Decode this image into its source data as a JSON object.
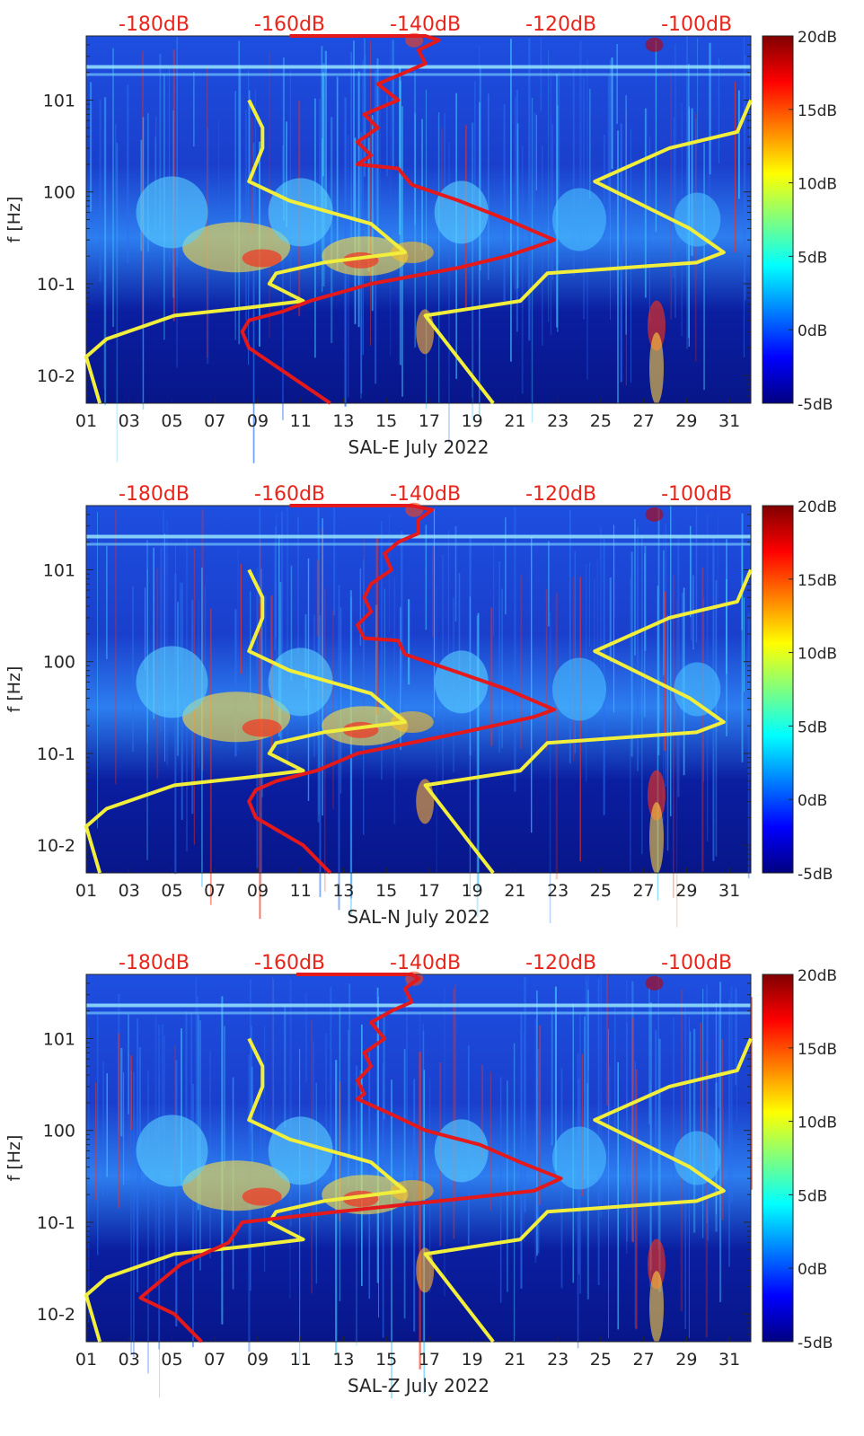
{
  "colors": {
    "top_axis_labels": "#e8251b",
    "noise_model_lines": "#f2ee3c",
    "psd_curve": "#e3191b",
    "colormap_low": "#000080",
    "colormap_high": "#800000"
  },
  "chart_data": [
    {
      "type": "heatmap",
      "title": "",
      "xlabel": "SAL-E July 2022",
      "ylabel": "f [Hz]",
      "x_tick_labels": [
        "01",
        "03",
        "05",
        "07",
        "09",
        "11",
        "13",
        "15",
        "17",
        "19",
        "21",
        "23",
        "25",
        "27",
        "29",
        "31"
      ],
      "x_range_days": [
        1,
        32
      ],
      "y_scale": "log",
      "y_range_hz": [
        0.005,
        50
      ],
      "y_tick_labels": [
        "10-2",
        "10-1",
        "100",
        "101"
      ],
      "colorbar": {
        "range_db": [
          -5,
          20
        ],
        "tick_labels": [
          "20dB",
          "15dB",
          "10dB",
          "5dB",
          "0dB",
          "-5dB"
        ]
      },
      "top_axis": {
        "tick_labels": [
          "-180dB",
          "-160dB",
          "-140dB",
          "-120dB",
          "-100dB"
        ],
        "range_db": [
          -190,
          -92
        ]
      },
      "series": [
        {
          "kind": "noise-model",
          "points_db_hz": [
            [
              -166,
              10
            ],
            [
              -164,
              5
            ],
            [
              -164,
              3
            ],
            [
              -166,
              1.3
            ],
            [
              -160,
              0.8
            ],
            [
              -148,
              0.45
            ],
            [
              -143,
              0.22
            ],
            [
              -155,
              0.17
            ],
            [
              -162,
              0.13
            ],
            [
              -163,
              0.1
            ],
            [
              -158,
              0.065
            ],
            [
              -166,
              0.055
            ],
            [
              -177,
              0.045
            ],
            [
              -187,
              0.025
            ],
            [
              -190,
              0.016
            ],
            [
              -188,
              0.005
            ]
          ]
        },
        {
          "kind": "noise-model",
          "points_db_hz": [
            [
              -92,
              10
            ],
            [
              -94,
              4.5
            ],
            [
              -104,
              3
            ],
            [
              -115,
              1.3
            ],
            [
              -101,
              0.4
            ],
            [
              -96,
              0.22
            ],
            [
              -100,
              0.17
            ],
            [
              -122,
              0.13
            ],
            [
              -126,
              0.065
            ],
            [
              -140,
              0.045
            ],
            [
              -130,
              0.005
            ]
          ]
        },
        {
          "kind": "psd",
          "points_db_hz": [
            [
              -160,
              50
            ],
            [
              -140,
              50
            ],
            [
              -138,
              45
            ],
            [
              -141,
              35
            ],
            [
              -140,
              25
            ],
            [
              -143,
              20
            ],
            [
              -147,
              15
            ],
            [
              -144,
              10
            ],
            [
              -149,
              7
            ],
            [
              -147,
              5
            ],
            [
              -150,
              3.5
            ],
            [
              -148,
              2.5
            ],
            [
              -150,
              2
            ],
            [
              -144,
              1.8
            ],
            [
              -142,
              1.2
            ],
            [
              -135,
              0.8
            ],
            [
              -128,
              0.5
            ],
            [
              -121,
              0.3
            ],
            [
              -124,
              0.25
            ],
            [
              -128,
              0.2
            ],
            [
              -135,
              0.15
            ],
            [
              -148,
              0.1
            ],
            [
              -157,
              0.065
            ],
            [
              -161,
              0.05
            ],
            [
              -166,
              0.04
            ],
            [
              -167,
              0.03
            ],
            [
              -166,
              0.02
            ],
            [
              -160,
              0.01
            ],
            [
              -154,
              0.005
            ]
          ]
        }
      ]
    },
    {
      "type": "heatmap",
      "title": "",
      "xlabel": "SAL-N July 2022",
      "ylabel": "f [Hz]",
      "x_tick_labels": [
        "01",
        "03",
        "05",
        "07",
        "09",
        "11",
        "13",
        "15",
        "17",
        "19",
        "21",
        "23",
        "25",
        "27",
        "29",
        "31"
      ],
      "x_range_days": [
        1,
        32
      ],
      "y_scale": "log",
      "y_range_hz": [
        0.005,
        50
      ],
      "y_tick_labels": [
        "10-2",
        "10-1",
        "100",
        "101"
      ],
      "colorbar": {
        "range_db": [
          -5,
          20
        ],
        "tick_labels": [
          "20dB",
          "15dB",
          "10dB",
          "5dB",
          "0dB",
          "-5dB"
        ]
      },
      "top_axis": {
        "tick_labels": [
          "-180dB",
          "-160dB",
          "-140dB",
          "-120dB",
          "-100dB"
        ],
        "range_db": [
          -190,
          -92
        ]
      },
      "series": [
        {
          "kind": "noise-model",
          "points_db_hz": [
            [
              -166,
              10
            ],
            [
              -164,
              5
            ],
            [
              -164,
              3
            ],
            [
              -166,
              1.3
            ],
            [
              -160,
              0.8
            ],
            [
              -148,
              0.45
            ],
            [
              -143,
              0.22
            ],
            [
              -155,
              0.17
            ],
            [
              -162,
              0.13
            ],
            [
              -163,
              0.1
            ],
            [
              -158,
              0.065
            ],
            [
              -166,
              0.055
            ],
            [
              -177,
              0.045
            ],
            [
              -187,
              0.025
            ],
            [
              -190,
              0.016
            ],
            [
              -188,
              0.005
            ]
          ]
        },
        {
          "kind": "noise-model",
          "points_db_hz": [
            [
              -92,
              10
            ],
            [
              -94,
              4.5
            ],
            [
              -104,
              3
            ],
            [
              -115,
              1.3
            ],
            [
              -101,
              0.4
            ],
            [
              -96,
              0.22
            ],
            [
              -100,
              0.17
            ],
            [
              -122,
              0.13
            ],
            [
              -126,
              0.065
            ],
            [
              -140,
              0.045
            ],
            [
              -130,
              0.005
            ]
          ]
        },
        {
          "kind": "psd",
          "points_db_hz": [
            [
              -160,
              50
            ],
            [
              -142,
              50
            ],
            [
              -139,
              45
            ],
            [
              -141,
              35
            ],
            [
              -141,
              25
            ],
            [
              -144,
              20
            ],
            [
              -146,
              15
            ],
            [
              -145,
              10
            ],
            [
              -148,
              7
            ],
            [
              -149,
              5
            ],
            [
              -148,
              3.5
            ],
            [
              -150,
              2.5
            ],
            [
              -149,
              1.8
            ],
            [
              -144,
              1.7
            ],
            [
              -143,
              1.2
            ],
            [
              -136,
              0.8
            ],
            [
              -128,
              0.5
            ],
            [
              -121,
              0.3
            ],
            [
              -124,
              0.25
            ],
            [
              -130,
              0.2
            ],
            [
              -138,
              0.15
            ],
            [
              -150,
              0.1
            ],
            [
              -156,
              0.065
            ],
            [
              -162,
              0.05
            ],
            [
              -165,
              0.04
            ],
            [
              -166,
              0.03
            ],
            [
              -165,
              0.02
            ],
            [
              -158,
              0.01
            ],
            [
              -154,
              0.005
            ]
          ]
        }
      ]
    },
    {
      "type": "heatmap",
      "title": "",
      "xlabel": "SAL-Z July 2022",
      "ylabel": "f [Hz]",
      "x_tick_labels": [
        "01",
        "03",
        "05",
        "07",
        "09",
        "11",
        "13",
        "15",
        "17",
        "19",
        "21",
        "23",
        "25",
        "27",
        "29",
        "31"
      ],
      "x_range_days": [
        1,
        32
      ],
      "y_scale": "log",
      "y_range_hz": [
        0.005,
        50
      ],
      "y_tick_labels": [
        "10-2",
        "10-1",
        "100",
        "101"
      ],
      "colorbar": {
        "range_db": [
          -5,
          20
        ],
        "tick_labels": [
          "20dB",
          "15dB",
          "10dB",
          "5dB",
          "0dB",
          "-5dB"
        ]
      },
      "top_axis": {
        "tick_labels": [
          "-180dB",
          "-160dB",
          "-140dB",
          "-120dB",
          "-100dB"
        ],
        "range_db": [
          -190,
          -92
        ]
      },
      "series": [
        {
          "kind": "noise-model",
          "points_db_hz": [
            [
              -166,
              10
            ],
            [
              -164,
              5
            ],
            [
              -164,
              3
            ],
            [
              -166,
              1.3
            ],
            [
              -160,
              0.8
            ],
            [
              -148,
              0.45
            ],
            [
              -143,
              0.22
            ],
            [
              -155,
              0.17
            ],
            [
              -162,
              0.13
            ],
            [
              -163,
              0.1
            ],
            [
              -158,
              0.065
            ],
            [
              -166,
              0.055
            ],
            [
              -177,
              0.045
            ],
            [
              -187,
              0.025
            ],
            [
              -190,
              0.016
            ],
            [
              -188,
              0.005
            ]
          ]
        },
        {
          "kind": "noise-model",
          "points_db_hz": [
            [
              -92,
              10
            ],
            [
              -94,
              4.5
            ],
            [
              -104,
              3
            ],
            [
              -115,
              1.3
            ],
            [
              -101,
              0.4
            ],
            [
              -96,
              0.22
            ],
            [
              -100,
              0.17
            ],
            [
              -122,
              0.13
            ],
            [
              -126,
              0.065
            ],
            [
              -140,
              0.045
            ],
            [
              -130,
              0.005
            ]
          ]
        },
        {
          "kind": "psd",
          "points_db_hz": [
            [
              -159,
              50
            ],
            [
              -142,
              50
            ],
            [
              -141,
              45
            ],
            [
              -143,
              35
            ],
            [
              -142,
              25
            ],
            [
              -145,
              20
            ],
            [
              -148,
              15
            ],
            [
              -146,
              10
            ],
            [
              -149,
              7
            ],
            [
              -148,
              5
            ],
            [
              -150,
              3.5
            ],
            [
              -149,
              2.5
            ],
            [
              -150,
              2.2
            ],
            [
              -145,
              1.5
            ],
            [
              -140,
              1
            ],
            [
              -132,
              0.7
            ],
            [
              -126,
              0.45
            ],
            [
              -120,
              0.3
            ],
            [
              -124,
              0.22
            ],
            [
              -138,
              0.17
            ],
            [
              -153,
              0.13
            ],
            [
              -167,
              0.1
            ],
            [
              -169,
              0.06
            ],
            [
              -176,
              0.035
            ],
            [
              -180,
              0.02
            ],
            [
              -182,
              0.015
            ],
            [
              -177,
              0.01
            ],
            [
              -173,
              0.005
            ]
          ]
        }
      ]
    }
  ]
}
